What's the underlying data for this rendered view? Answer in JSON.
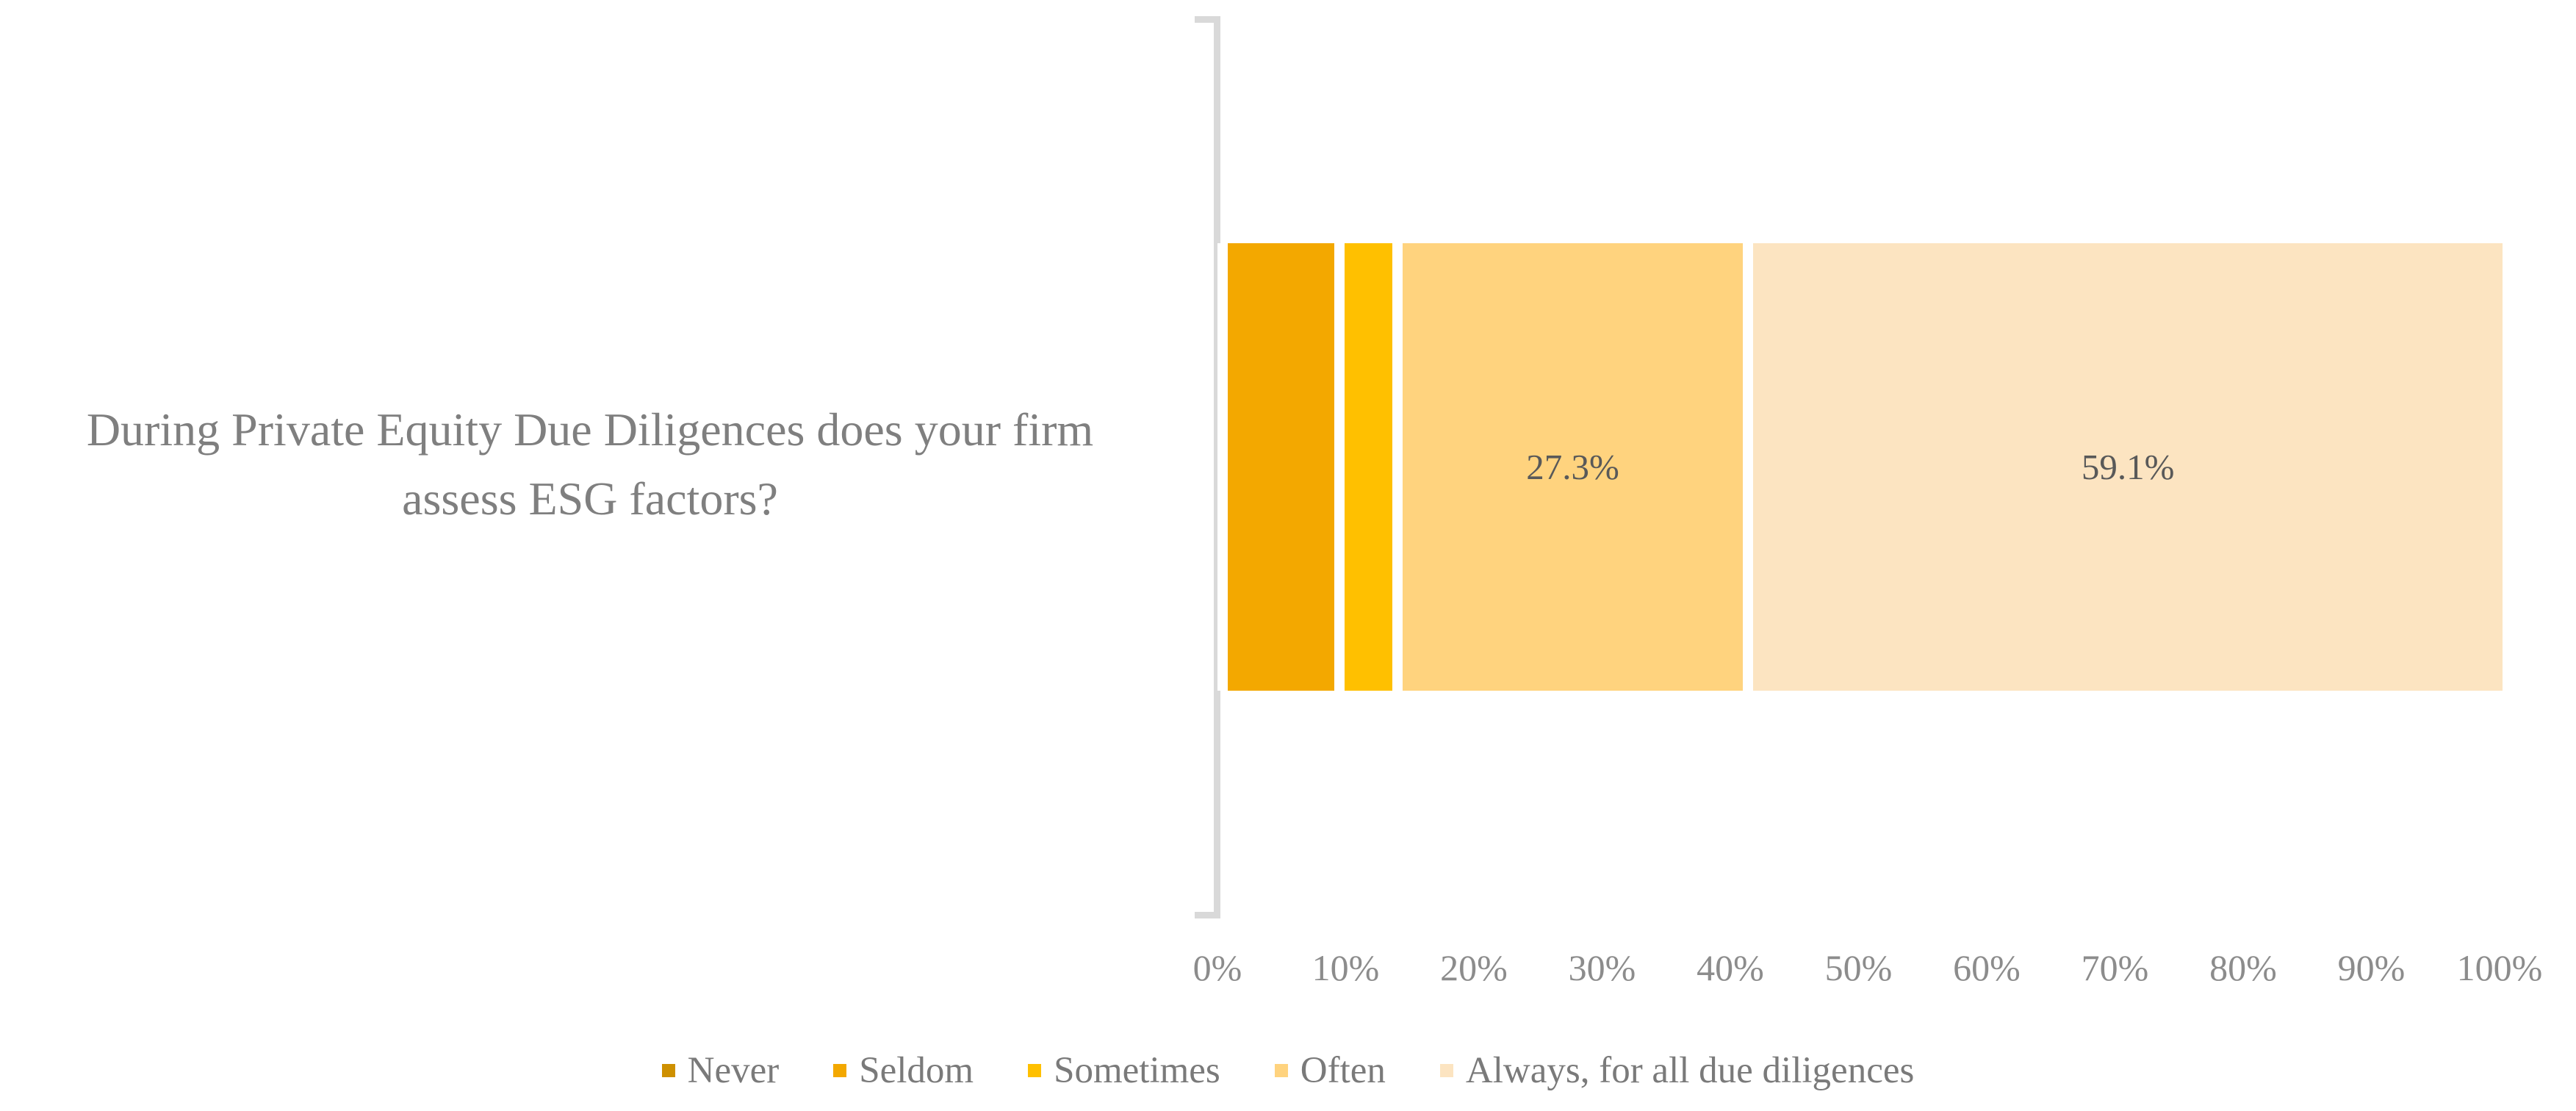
{
  "title": {
    "text": "During Private Equity Due Diligences does your firm assess ESG factors?",
    "lines": [
      "During Private Equity Due Diligences does your firm",
      "assess ESG factors?"
    ]
  },
  "chart_data": {
    "type": "bar",
    "subtype": "horizontal-stacked-100pct",
    "category": "During Private Equity Due Diligences does your firm assess ESG factors?",
    "series": [
      {
        "name": "Never",
        "value": 0,
        "label": "",
        "color": "#CE9000"
      },
      {
        "name": "Seldom",
        "value": 9.1,
        "label": "",
        "color": "#F3A800"
      },
      {
        "name": "Sometimes",
        "value": 4.5,
        "label": "",
        "color": "#FFC000"
      },
      {
        "name": "Often",
        "value": 27.3,
        "label": "27.3%",
        "color": "#FFD37E"
      },
      {
        "name": "Always, for all due diligences",
        "value": 59.1,
        "label": "59.1%",
        "color": "#FCE4C1"
      }
    ],
    "x_axis": {
      "min": 0,
      "max": 100,
      "tick_labels": [
        "0%",
        "10%",
        "20%",
        "30%",
        "40%",
        "50%",
        "60%",
        "70%",
        "80%",
        "90%",
        "100%"
      ]
    },
    "legend_position": "bottom",
    "grid": "off"
  },
  "colors": {
    "axis_line": "#D9D9D9",
    "title_text": "#7F7F7F",
    "axis_label_text": "#8C8C8C",
    "data_label_text": "#595959",
    "legend_text": "#7A7A7A",
    "background": "#FFFFFF"
  }
}
